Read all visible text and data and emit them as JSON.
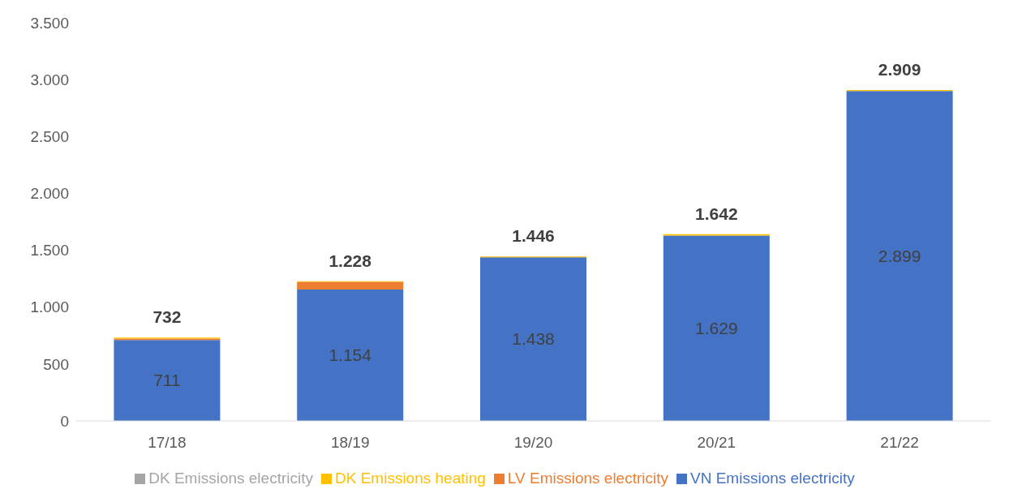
{
  "chart_data": {
    "type": "bar",
    "stacked": true,
    "categories": [
      "17/18",
      "18/19",
      "19/20",
      "20/21",
      "21/22"
    ],
    "series": [
      {
        "name": "VN Emissions electricity",
        "color": "#4472c4",
        "values": [
          711,
          1154,
          1438,
          1629,
          2899
        ],
        "value_labels": [
          "711",
          "1.154",
          "1.438",
          "1.629",
          "2.899"
        ]
      },
      {
        "name": "LV Emissions electricity",
        "color": "#ed7d31",
        "values": [
          12,
          68,
          null,
          null,
          0
        ]
      },
      {
        "name": "DK Emissions electricity",
        "color": "#a5a5a5",
        "values": [
          0,
          0,
          0,
          0,
          0
        ]
      },
      {
        "name": "DK Emissions heating",
        "color": "#ffc000",
        "values": [
          9,
          6,
          8,
          13,
          10
        ]
      }
    ],
    "totals": [
      "732",
      "1.228",
      "1.446",
      "1.642",
      "2.909"
    ],
    "ylim": [
      0,
      3500
    ],
    "yticks": [
      {
        "value": 0,
        "label": "0"
      },
      {
        "value": 500,
        "label": "500"
      },
      {
        "value": 1000,
        "label": "1.000"
      },
      {
        "value": 1500,
        "label": "1.500"
      },
      {
        "value": 2000,
        "label": "2.000"
      },
      {
        "value": 2500,
        "label": "2.500"
      },
      {
        "value": 3000,
        "label": "3.000"
      },
      {
        "value": 3500,
        "label": "3.500"
      }
    ],
    "grid": false,
    "legend": "bottom"
  }
}
